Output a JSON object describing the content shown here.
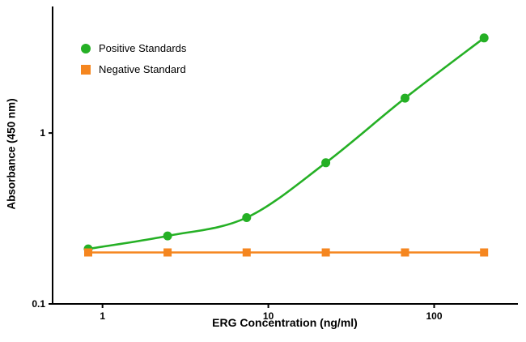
{
  "chart_data": {
    "type": "scatter",
    "title": "",
    "xlabel": "ERG Concentration (ng/ml)",
    "ylabel": "Absorbance (450 nm)",
    "x_scale": "log",
    "y_scale": "log",
    "xlim": [
      0.5,
      320
    ],
    "ylim": [
      0.1,
      5.5
    ],
    "x_ticks": [
      1,
      10,
      100
    ],
    "y_ticks": [
      0.1,
      1
    ],
    "grid": false,
    "legend_position": "top-left-inside",
    "axis_color": "#000000",
    "series": [
      {
        "name": "Positive Standards",
        "marker": "circle",
        "color": "#25b025",
        "curve": "smooth",
        "x": [
          0.82,
          2.47,
          7.4,
          22.2,
          66.7,
          200
        ],
        "y": [
          0.21,
          0.25,
          0.32,
          0.67,
          1.6,
          3.6
        ]
      },
      {
        "name": "Negative Standard",
        "marker": "square",
        "color": "#f5861f",
        "curve": "straight",
        "x": [
          0.82,
          2.47,
          7.4,
          22.2,
          66.7,
          200
        ],
        "y": [
          0.2,
          0.2,
          0.2,
          0.2,
          0.2,
          0.2
        ]
      }
    ]
  }
}
